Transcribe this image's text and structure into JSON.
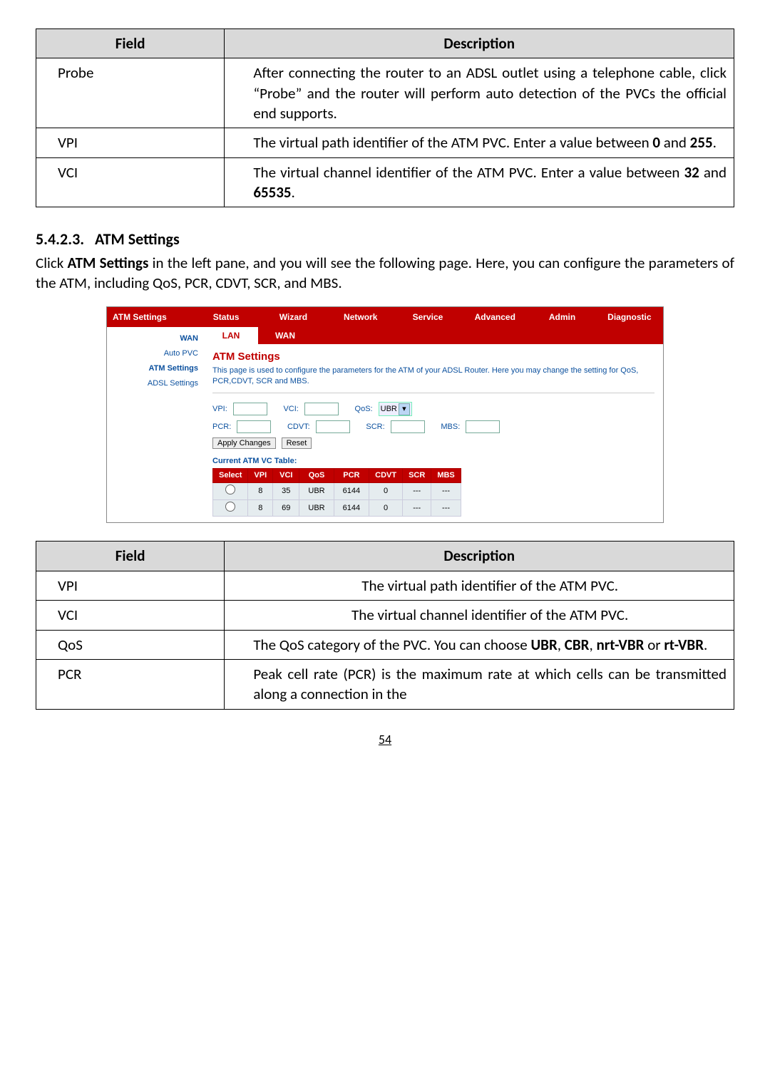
{
  "table1": {
    "headers": [
      "Field",
      "Description"
    ],
    "rows": [
      {
        "field": "Probe",
        "desc": "After connecting the router to an ADSL outlet using a telephone cable, click “Probe” and the router will perform auto detection of the PVCs the official end supports."
      },
      {
        "field": "VPI",
        "desc_pre": "The virtual path identifier of the ATM PVC. Enter a value between ",
        "b1": "0",
        "mid": " and ",
        "b2": "255",
        "post": "."
      },
      {
        "field": "VCI",
        "desc_pre": "The virtual channel identifier of the ATM PVC. Enter a value between ",
        "b1": "32",
        "mid": " and ",
        "b2": "65535",
        "post": "."
      }
    ]
  },
  "section": {
    "num": "5.4.2.3.",
    "title": "ATM Settings",
    "para_a": "Click ",
    "para_b": "ATM Settings",
    "para_c": " in the left pane, and you will see the following page. Here, you can configure the parameters of the ATM, including QoS, PCR, CDVT, SCR, and MBS."
  },
  "screenshot": {
    "side_head": "ATM Settings",
    "side_items": [
      "WAN",
      "Auto PVC",
      "ATM Settings",
      "ADSL Settings"
    ],
    "topbar": [
      "Status",
      "Wizard",
      "Network",
      "Service",
      "Advanced",
      "Admin",
      "Diagnostic"
    ],
    "subbar": [
      "LAN",
      "WAN"
    ],
    "main_title": "ATM Settings",
    "hint": "This page is used to configure the parameters for the ATM of your ADSL Router. Here you may change the setting for QoS, PCR,CDVT, SCR and MBS.",
    "labels": {
      "vpi": "VPI:",
      "vci": "VCI:",
      "qos": "QoS:",
      "pcr": "PCR:",
      "cdvt": "CDVT:",
      "scr": "SCR:",
      "mbs": "MBS:"
    },
    "qos_val": "UBR",
    "btn_apply": "Apply Changes",
    "btn_reset": "Reset",
    "vc_title": "Current ATM VC Table:",
    "vc_headers": [
      "Select",
      "VPI",
      "VCI",
      "QoS",
      "PCR",
      "CDVT",
      "SCR",
      "MBS"
    ],
    "vc_rows": [
      [
        "",
        "8",
        "35",
        "UBR",
        "6144",
        "0",
        "---",
        "---"
      ],
      [
        "",
        "8",
        "69",
        "UBR",
        "6144",
        "0",
        "---",
        "---"
      ]
    ]
  },
  "table2": {
    "headers": [
      "Field",
      "Description"
    ],
    "rows": [
      {
        "field": "VPI",
        "desc": "The virtual path identifier of the ATM PVC."
      },
      {
        "field": "VCI",
        "desc": "The virtual channel identifier of the ATM PVC."
      },
      {
        "field": "QoS",
        "pre": "The QoS category of the PVC. You can choose ",
        "b_list": [
          "UBR",
          "CBR",
          "nrt-VBR",
          "rt-VBR"
        ]
      },
      {
        "field": "PCR",
        "desc": "Peak cell rate (PCR) is the maximum rate at which cells can be transmitted along a connection in the"
      }
    ]
  },
  "pagenum": "54"
}
